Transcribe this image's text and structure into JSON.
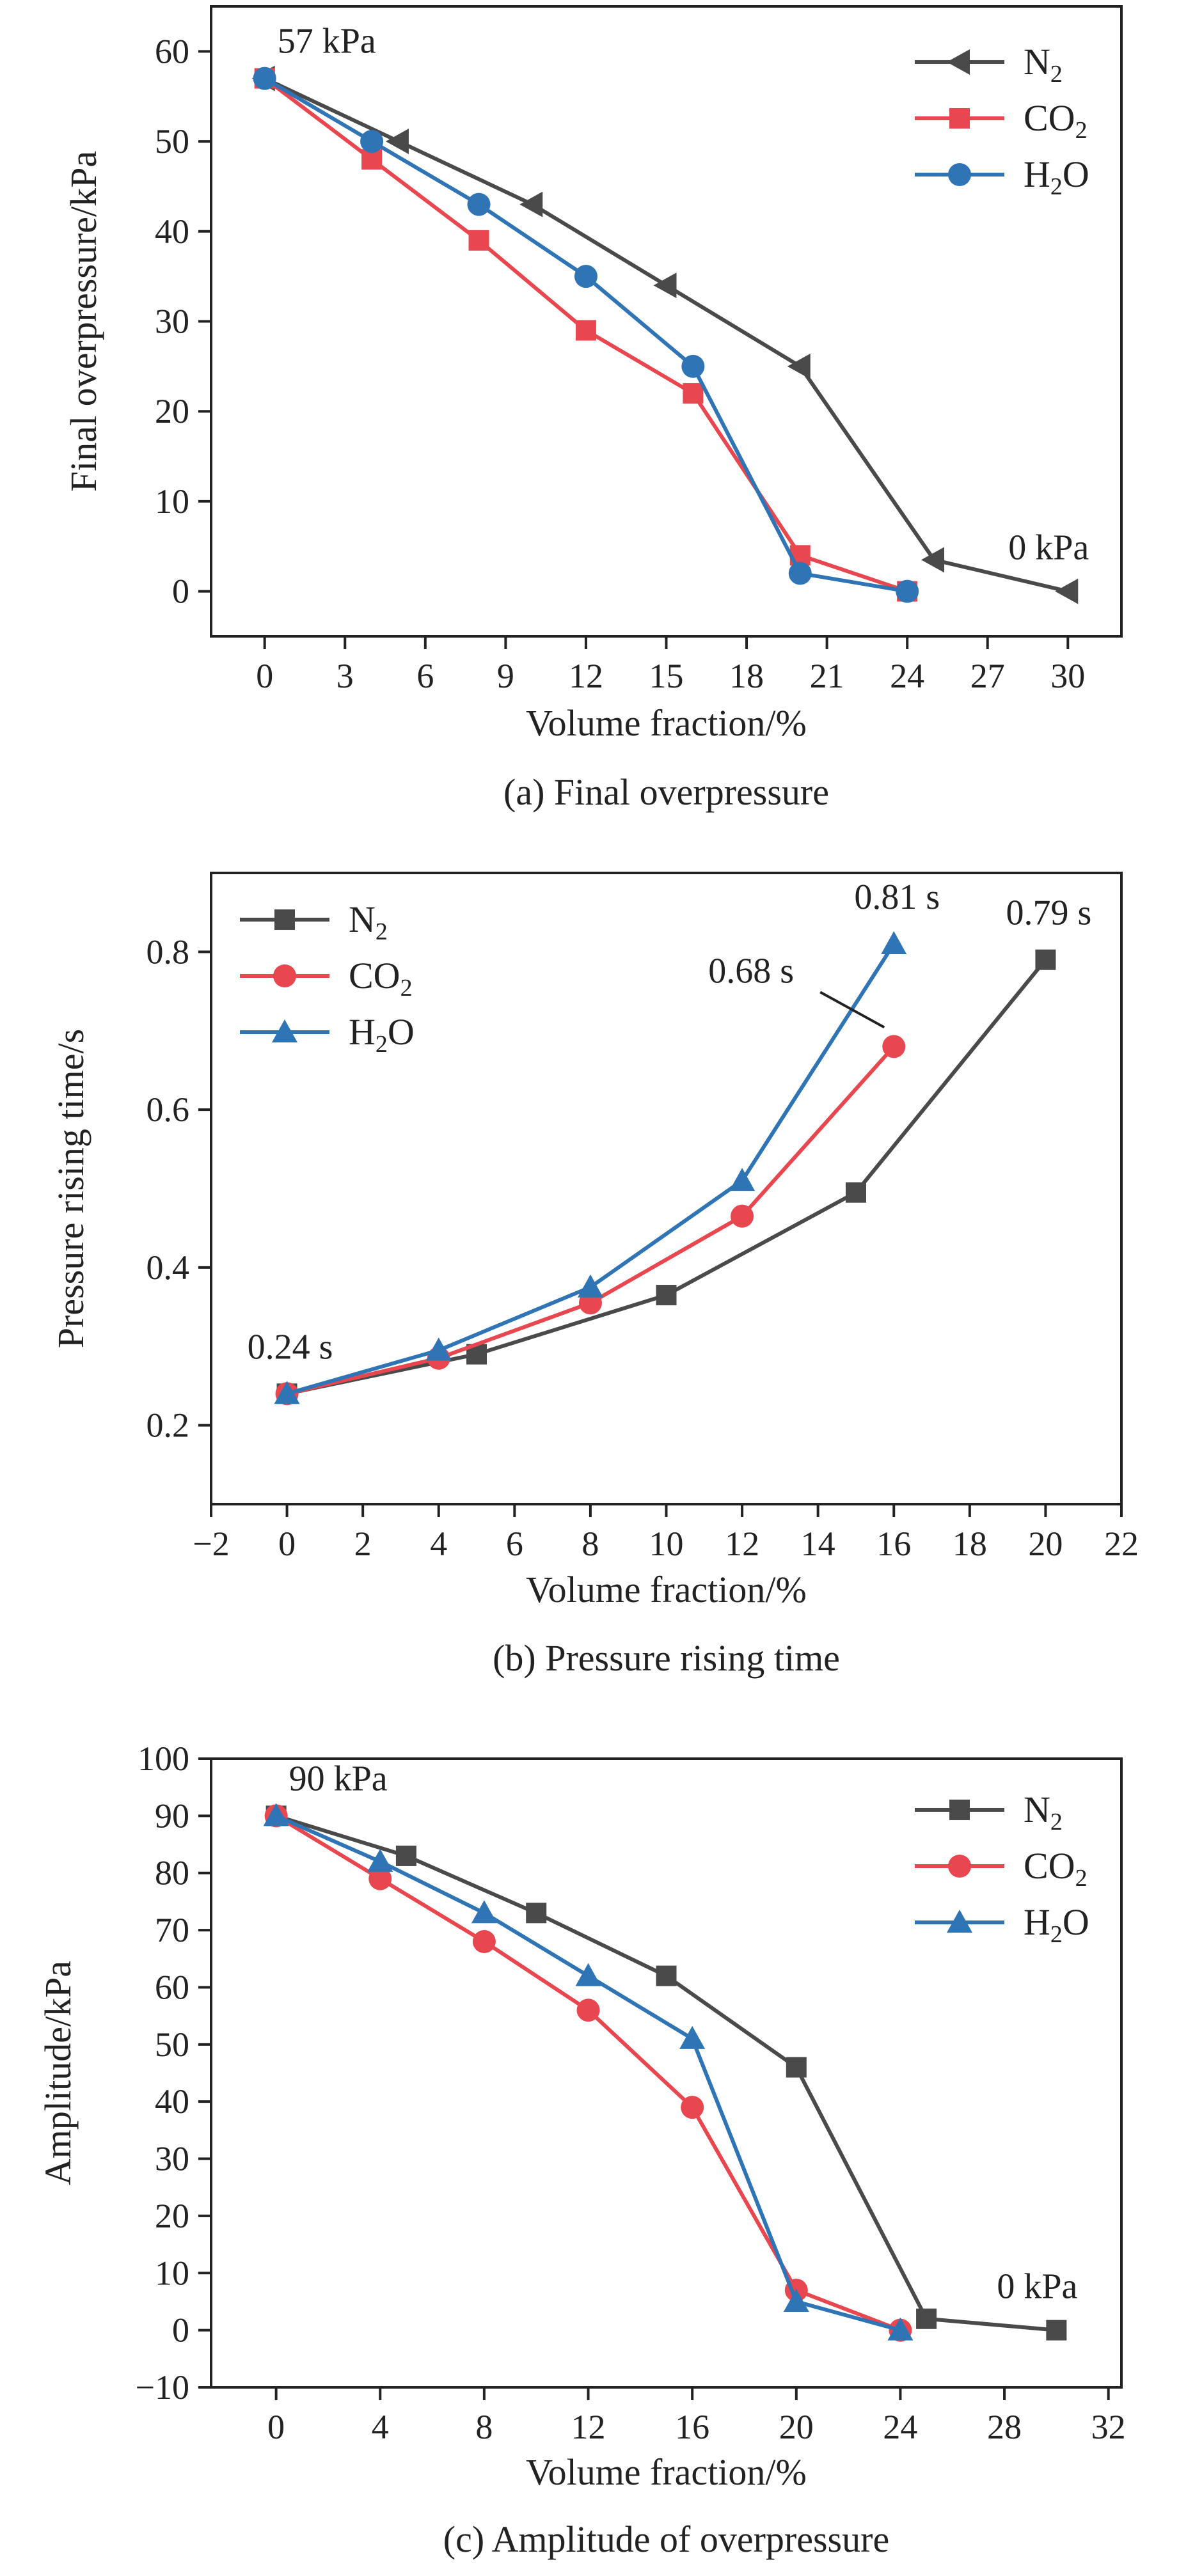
{
  "chart_data": [
    {
      "type": "line",
      "xlabel": "Volume fraction/%",
      "ylabel": "Final overpressure/kPa",
      "caption": "(a) Final overpressure",
      "xlim": [
        -2,
        32
      ],
      "ylim": [
        -5,
        65
      ],
      "xticks": [
        0,
        3,
        6,
        9,
        12,
        15,
        18,
        21,
        24,
        27,
        30
      ],
      "yticks": [
        0,
        10,
        20,
        30,
        40,
        50,
        60
      ],
      "legend_position": "top-right",
      "series": [
        {
          "name": "N2",
          "sub": "2",
          "base": "N",
          "tail": "",
          "marker": "triangle-left",
          "color": "#4a4a4a",
          "x": [
            0,
            5,
            10,
            15,
            20,
            25,
            30
          ],
          "y": [
            57,
            50,
            43,
            34,
            25,
            3.5,
            0
          ]
        },
        {
          "name": "CO2",
          "sub": "2",
          "base": "CO",
          "tail": "",
          "marker": "square",
          "color": "#e8474f",
          "x": [
            0,
            4,
            8,
            12,
            16,
            20,
            24
          ],
          "y": [
            57,
            48,
            39,
            29,
            22,
            4,
            0
          ]
        },
        {
          "name": "H2O",
          "sub": "2",
          "base": "H",
          "tail": "O",
          "marker": "circle",
          "color": "#2f74b5",
          "x": [
            0,
            4,
            8,
            12,
            16,
            20,
            24
          ],
          "y": [
            57,
            50,
            43,
            35,
            25,
            2,
            0
          ]
        }
      ],
      "annotations": [
        {
          "text": "57 kPa",
          "x": 0,
          "y": 57,
          "anchor": "upper-right"
        },
        {
          "text": "0 kPa",
          "x": 30,
          "y": 0,
          "anchor": "upper-center"
        }
      ]
    },
    {
      "type": "line",
      "xlabel": "Volume fraction/%",
      "ylabel": "Pressure rising time/s",
      "caption": "(b) Pressure rising time",
      "xlim": [
        -2,
        22
      ],
      "ylim": [
        0.1,
        0.9
      ],
      "xticks": [
        -2,
        0,
        2,
        4,
        6,
        8,
        10,
        12,
        14,
        16,
        18,
        20,
        22
      ],
      "yticks": [
        0.2,
        0.4,
        0.6,
        0.8
      ],
      "legend_position": "top-left",
      "series": [
        {
          "name": "N2",
          "sub": "2",
          "base": "N",
          "tail": "",
          "marker": "square",
          "color": "#4a4a4a",
          "x": [
            0,
            5,
            10,
            15,
            20
          ],
          "y": [
            0.24,
            0.29,
            0.365,
            0.495,
            0.79
          ]
        },
        {
          "name": "CO2",
          "sub": "2",
          "base": "CO",
          "tail": "",
          "marker": "circle",
          "color": "#e8474f",
          "x": [
            0,
            4,
            8,
            12,
            16
          ],
          "y": [
            0.24,
            0.285,
            0.355,
            0.465,
            0.68
          ]
        },
        {
          "name": "H2O",
          "sub": "2",
          "base": "H",
          "tail": "O",
          "marker": "triangle-up",
          "color": "#2f74b5",
          "x": [
            0,
            4,
            8,
            12,
            16
          ],
          "y": [
            0.24,
            0.295,
            0.375,
            0.51,
            0.81
          ]
        }
      ],
      "annotations": [
        {
          "text": "0.24 s",
          "x": 0,
          "y": 0.24,
          "anchor": "above"
        },
        {
          "text": "0.81 s",
          "x": 16,
          "y": 0.81,
          "anchor": "above"
        },
        {
          "text": "0.79 s",
          "x": 20,
          "y": 0.79,
          "anchor": "above"
        },
        {
          "text": "0.68 s",
          "x": 16,
          "y": 0.68,
          "anchor": "leader"
        }
      ]
    },
    {
      "type": "line",
      "xlabel": "Volume fraction/%",
      "ylabel": "Amplitude/kPa",
      "caption": "(c) Amplitude of overpressure",
      "xlim": [
        -2.5,
        32.5
      ],
      "ylim": [
        -10,
        100
      ],
      "xticks": [
        0,
        4,
        8,
        12,
        16,
        20,
        24,
        28,
        32
      ],
      "yticks": [
        -10,
        0,
        10,
        20,
        30,
        40,
        50,
        60,
        70,
        80,
        90,
        100
      ],
      "legend_position": "top-right",
      "series": [
        {
          "name": "N2",
          "sub": "2",
          "base": "N",
          "tail": "",
          "marker": "square",
          "color": "#4a4a4a",
          "x": [
            0,
            5,
            10,
            15,
            20,
            25,
            30
          ],
          "y": [
            90,
            83,
            73,
            62,
            46,
            2,
            0
          ]
        },
        {
          "name": "CO2",
          "sub": "2",
          "base": "CO",
          "tail": "",
          "marker": "circle",
          "color": "#e8474f",
          "x": [
            0,
            4,
            8,
            12,
            16,
            20,
            24
          ],
          "y": [
            90,
            79,
            68,
            56,
            39,
            7,
            0
          ]
        },
        {
          "name": "H2O",
          "sub": "2",
          "base": "H",
          "tail": "O",
          "marker": "triangle-up",
          "color": "#2f74b5",
          "x": [
            0,
            4,
            8,
            12,
            16,
            20,
            24
          ],
          "y": [
            90,
            82,
            73,
            62,
            51,
            5,
            0
          ]
        }
      ],
      "annotations": [
        {
          "text": "90 kPa",
          "x": 0,
          "y": 90,
          "anchor": "upper-right"
        },
        {
          "text": "0 kPa",
          "x": 30,
          "y": 0,
          "anchor": "upper-center"
        }
      ]
    }
  ]
}
